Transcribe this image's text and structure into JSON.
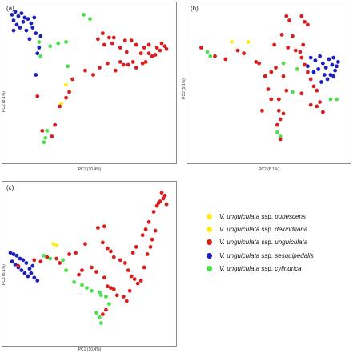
{
  "colors": {
    "pubescens": "#ffea20",
    "dekindtiana": "#ffea20",
    "unguiculata": "#d81f1f",
    "sesquipedalis": "#1d1fbf",
    "cylindrica": "#4de04d"
  },
  "legend": [
    {
      "key": "pubescens",
      "genus": "V. unguiculata",
      "ssp_word": "ssp.",
      "name": "pubescens"
    },
    {
      "key": "dekindtiana",
      "genus": "V. unguiculata",
      "ssp_word": "ssp.",
      "name": "dekindtiana"
    },
    {
      "key": "unguiculata",
      "genus": "V. unguiculata",
      "ssp_word": "ssp.",
      "name": "unguiculata"
    },
    {
      "key": "sesquipedalis",
      "genus": "V. unguiculata",
      "ssp_word": "ssp.",
      "name": "sesquipedalis"
    },
    {
      "key": "cylindrica",
      "genus": "V. unguiculata",
      "ssp_word": "ssp.",
      "name": "cylindrica"
    }
  ],
  "chart_data": [
    {
      "type": "scatter",
      "panel_label": "(a)",
      "xlabel": "PC1 (10.4%)",
      "ylabel": "PC2 (8.1%)",
      "xlim": [
        0,
        100
      ],
      "ylim": [
        0,
        100
      ],
      "series": [
        {
          "key": "sesquipedalis",
          "points": [
            [
              2,
              97
            ],
            [
              4,
              99
            ],
            [
              6,
              96
            ],
            [
              8,
              98
            ],
            [
              3,
              93
            ],
            [
              10,
              95
            ],
            [
              12,
              94
            ],
            [
              14,
              91
            ],
            [
              15,
              88
            ],
            [
              9,
              92
            ],
            [
              5,
              90
            ],
            [
              11,
              86
            ],
            [
              17,
              84
            ],
            [
              13,
              80
            ],
            [
              19,
              74
            ],
            [
              7,
              88
            ],
            [
              3,
              86
            ],
            [
              16,
              95
            ],
            [
              20,
              82
            ],
            [
              18,
              70
            ],
            [
              17,
              55
            ]
          ]
        },
        {
          "key": "cylindrica",
          "points": [
            [
              47,
              97
            ],
            [
              51,
              94
            ],
            [
              36,
              78
            ],
            [
              31,
              77
            ],
            [
              26,
              75
            ],
            [
              19,
              78
            ],
            [
              20,
              68
            ],
            [
              37,
              61
            ],
            [
              24,
              16
            ],
            [
              23,
              11
            ],
            [
              22,
              8
            ]
          ]
        },
        {
          "key": "pubescens",
          "points": [
            [
              36,
              48
            ]
          ]
        },
        {
          "key": "dekindtiana",
          "points": [
            [
              33,
              35
            ]
          ]
        },
        {
          "key": "unguiculata",
          "points": [
            [
              59,
              84
            ],
            [
              56,
              80
            ],
            [
              60,
              76
            ],
            [
              65,
              77
            ],
            [
              70,
              74
            ],
            [
              74,
              71
            ],
            [
              77,
              79
            ],
            [
              80,
              76
            ],
            [
              83,
              70
            ],
            [
              85,
              74
            ],
            [
              88,
              76
            ],
            [
              90,
              68
            ],
            [
              93,
              74
            ],
            [
              96,
              77
            ],
            [
              98,
              75
            ],
            [
              86,
              64
            ],
            [
              80,
              60
            ],
            [
              75,
              62
            ],
            [
              70,
              64
            ],
            [
              67,
              58
            ],
            [
              62,
              63
            ],
            [
              57,
              60
            ],
            [
              53,
              55
            ],
            [
              48,
              58
            ],
            [
              40,
              52
            ],
            [
              38,
              43
            ],
            [
              36,
              39
            ],
            [
              32,
              33
            ],
            [
              29,
              20
            ],
            [
              27,
              12
            ],
            [
              21,
              16
            ],
            [
              18,
              40
            ],
            [
              72,
              62
            ],
            [
              78,
              64
            ],
            [
              84,
              63
            ],
            [
              88,
              70
            ],
            [
              92,
              69
            ],
            [
              95,
              72
            ],
            [
              73,
              79
            ],
            [
              66,
              81
            ],
            [
              63,
              81
            ],
            [
              99,
              73
            ]
          ]
        }
      ]
    },
    {
      "type": "scatter",
      "panel_label": "(b)",
      "xlabel": "PC2 (8.1%)",
      "ylabel": "PC3 (5.1%)",
      "xlim": [
        0,
        100
      ],
      "ylim": [
        0,
        100
      ],
      "series": [
        {
          "key": "sesquipedalis",
          "points": [
            [
              78,
              67
            ],
            [
              81,
              65
            ],
            [
              84,
              68
            ],
            [
              86,
              63
            ],
            [
              88,
              60
            ],
            [
              90,
              66
            ],
            [
              92,
              62
            ],
            [
              94,
              58
            ],
            [
              96,
              64
            ],
            [
              83,
              59
            ],
            [
              80,
              57
            ],
            [
              87,
              55
            ],
            [
              89,
              52
            ],
            [
              91,
              55
            ],
            [
              85,
              50
            ],
            [
              95,
              61
            ],
            [
              93,
              54
            ],
            [
              76,
              61
            ],
            [
              93,
              67
            ]
          ]
        },
        {
          "key": "cylindrica",
          "points": [
            [
              10,
              71
            ],
            [
              12,
              68
            ],
            [
              60,
              63
            ],
            [
              69,
              59
            ],
            [
              66,
              43
            ],
            [
              91,
              38
            ],
            [
              95,
              38
            ],
            [
              56,
              15
            ],
            [
              58,
              12
            ]
          ]
        },
        {
          "key": "pubescens",
          "points": [
            [
              26,
              78
            ]
          ]
        },
        {
          "key": "dekindtiana",
          "points": [
            [
              37,
              78
            ]
          ]
        },
        {
          "key": "unguiculata",
          "points": [
            [
              6,
              74
            ],
            [
              15,
              68
            ],
            [
              22,
              66
            ],
            [
              30,
              72
            ],
            [
              34,
              70
            ],
            [
              42,
              64
            ],
            [
              44,
              63
            ],
            [
              48,
              54
            ],
            [
              52,
              57
            ],
            [
              55,
              60
            ],
            [
              60,
              54
            ],
            [
              62,
              44
            ],
            [
              50,
              45
            ],
            [
              57,
              38
            ],
            [
              72,
              67
            ],
            [
              74,
              62
            ],
            [
              76,
              57
            ],
            [
              78,
              52
            ],
            [
              80,
              47
            ],
            [
              82,
              44
            ],
            [
              84,
              36
            ],
            [
              86,
              29
            ],
            [
              72,
              42
            ],
            [
              58,
              24
            ],
            [
              57,
              30
            ],
            [
              60,
              28
            ],
            [
              56,
              20
            ],
            [
              58,
              10
            ],
            [
              62,
              96
            ],
            [
              64,
              93
            ],
            [
              72,
              96
            ],
            [
              74,
              92
            ],
            [
              76,
              90
            ],
            [
              66,
              82
            ],
            [
              59,
              83
            ],
            [
              54,
              76
            ],
            [
              63,
              74
            ],
            [
              68,
              72
            ],
            [
              73,
              76
            ],
            [
              71,
              71
            ],
            [
              82,
              33
            ],
            [
              52,
              38
            ],
            [
              46,
              30
            ],
            [
              78,
              34
            ]
          ]
        }
      ]
    },
    {
      "type": "scatter",
      "panel_label": "(c)",
      "xlabel": "PC1 (10.4%)",
      "ylabel": "PC3 (5.1%)",
      "xlim": [
        0,
        100
      ],
      "ylim": [
        0,
        100
      ],
      "series": [
        {
          "key": "sesquipedalis",
          "points": [
            [
              1,
              57
            ],
            [
              3,
              56
            ],
            [
              5,
              55
            ],
            [
              7,
              53
            ],
            [
              2,
              51
            ],
            [
              4,
              49
            ],
            [
              6,
              47
            ],
            [
              8,
              45
            ],
            [
              10,
              43
            ],
            [
              12,
              41
            ],
            [
              14,
              43
            ],
            [
              16,
              40
            ],
            [
              11,
              50
            ],
            [
              9,
              52
            ],
            [
              13,
              46
            ],
            [
              18,
              38
            ],
            [
              15,
              48
            ]
          ]
        },
        {
          "key": "cylindrica",
          "points": [
            [
              22,
              55
            ],
            [
              26,
              53
            ],
            [
              34,
              52
            ],
            [
              36,
              45
            ],
            [
              41,
              37
            ],
            [
              46,
              35
            ],
            [
              49,
              33
            ],
            [
              52,
              31
            ],
            [
              58,
              28
            ],
            [
              61,
              27
            ],
            [
              63,
              22
            ],
            [
              57,
              30
            ],
            [
              55,
              16
            ],
            [
              57,
              13
            ],
            [
              58,
              9
            ]
          ]
        },
        {
          "key": "pubescens",
          "points": [
            [
              28,
              63
            ]
          ]
        },
        {
          "key": "dekindtiana",
          "points": [
            [
              30,
              62
            ]
          ]
        },
        {
          "key": "unguiculata",
          "points": [
            [
              6,
              48
            ],
            [
              16,
              52
            ],
            [
              20,
              51
            ],
            [
              24,
              54
            ],
            [
              30,
              53
            ],
            [
              32,
              50
            ],
            [
              38,
              56
            ],
            [
              42,
              57
            ],
            [
              48,
              63
            ],
            [
              59,
              64
            ],
            [
              56,
              74
            ],
            [
              60,
              75
            ],
            [
              62,
              60
            ],
            [
              64,
              58
            ],
            [
              66,
              54
            ],
            [
              70,
              52
            ],
            [
              73,
              50
            ],
            [
              75,
              45
            ],
            [
              77,
              41
            ],
            [
              79,
              39
            ],
            [
              81,
              36
            ],
            [
              83,
              38
            ],
            [
              85,
              47
            ],
            [
              87,
              56
            ],
            [
              89,
              61
            ],
            [
              90,
              66
            ],
            [
              92,
              72
            ],
            [
              91,
              85
            ],
            [
              93,
              89
            ],
            [
              95,
              92
            ],
            [
              97,
              94
            ],
            [
              98,
              96
            ],
            [
              96,
              98
            ],
            [
              94,
              91
            ],
            [
              99,
              90
            ],
            [
              88,
              78
            ],
            [
              86,
              73
            ],
            [
              84,
              69
            ],
            [
              80,
              61
            ],
            [
              78,
              57
            ],
            [
              44,
              42
            ],
            [
              46,
              45
            ],
            [
              52,
              47
            ],
            [
              55,
              44
            ],
            [
              60,
              40
            ],
            [
              62,
              34
            ],
            [
              64,
              33
            ],
            [
              66,
              32
            ],
            [
              68,
              28
            ],
            [
              72,
              27
            ],
            [
              74,
              24
            ],
            [
              76,
              31
            ],
            [
              61,
              18
            ],
            [
              59,
              15
            ]
          ]
        }
      ]
    }
  ]
}
